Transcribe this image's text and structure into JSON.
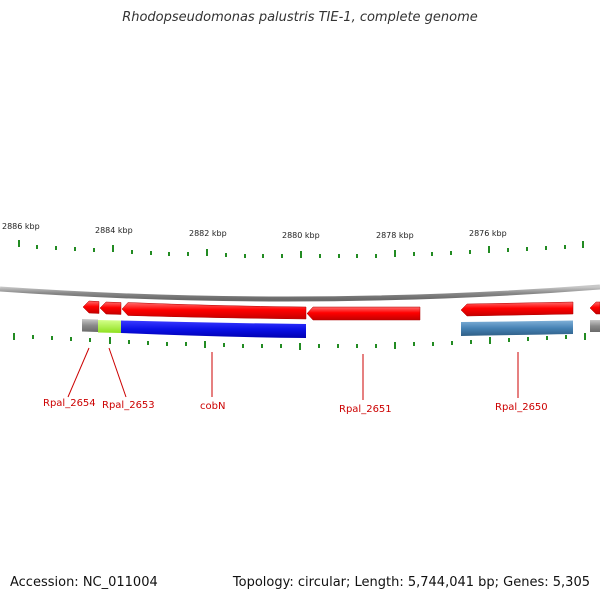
{
  "title": "Rhodopseudomonas palustris TIE-1, complete genome",
  "footer": {
    "accession": "Accession: NC_011004",
    "stats": "Topology: circular; Length: 5,744,041 bp; Genes: 5,305"
  },
  "scale": {
    "labels": [
      "2886 kbp",
      "2884 kbp",
      "2882 kbp",
      "2880 kbp",
      "2878 kbp",
      "2876 kbp"
    ]
  },
  "genes": [
    {
      "name": "Rpal_2654",
      "strand": "reverse"
    },
    {
      "name": "Rpal_2653",
      "strand": "reverse"
    },
    {
      "name": "cobN",
      "strand": "reverse"
    },
    {
      "name": "Rpal_2651",
      "strand": "reverse"
    },
    {
      "name": "Rpal_2650",
      "strand": "reverse"
    }
  ],
  "colors": {
    "cds_red": "#ff0000",
    "rpal_2653_feature": "#a6f53a",
    "cobN_feature": "#0a10e6",
    "rpal_2650_feature": "#4682b4",
    "other_feature": "#777777",
    "backbone": "#8a8a8a",
    "ticks": "#228b22",
    "label": "#cc0000"
  }
}
